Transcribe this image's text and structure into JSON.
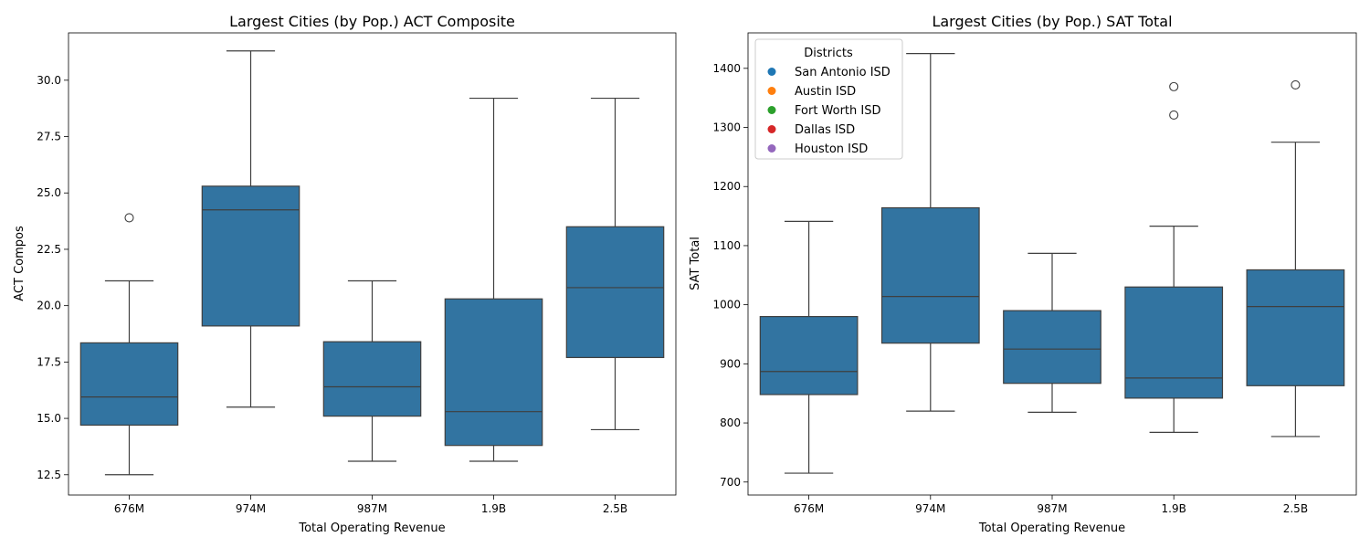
{
  "chart_data": [
    {
      "type": "box",
      "title": "Largest Cities (by Pop.) ACT Composite",
      "xlabel": "Total Operating Revenue",
      "ylabel": "ACT Compos",
      "ylim": [
        11.6,
        32.1
      ],
      "yticks": [
        "12.5",
        "15.0",
        "17.5",
        "20.0",
        "22.5",
        "25.0",
        "27.5",
        "30.0"
      ],
      "categories": [
        "676M",
        "974M",
        "987M",
        "1.9B",
        "2.5B"
      ],
      "box_color": "#3274a1",
      "boxes": [
        {
          "category": "676M",
          "whislo": 12.5,
          "q1": 14.7,
          "med": 15.95,
          "q3": 18.35,
          "whishi": 21.1,
          "fliers": [
            23.9
          ]
        },
        {
          "category": "974M",
          "whislo": 15.5,
          "q1": 19.1,
          "med": 24.25,
          "q3": 25.3,
          "whishi": 31.3,
          "fliers": []
        },
        {
          "category": "987M",
          "whislo": 13.1,
          "q1": 15.1,
          "med": 16.4,
          "q3": 18.4,
          "whishi": 21.1,
          "fliers": []
        },
        {
          "category": "1.9B",
          "whislo": 13.1,
          "q1": 13.8,
          "med": 15.3,
          "q3": 20.3,
          "whishi": 29.2,
          "fliers": []
        },
        {
          "category": "2.5B",
          "whislo": 14.5,
          "q1": 17.7,
          "med": 20.8,
          "q3": 23.5,
          "whishi": 29.2,
          "fliers": []
        }
      ]
    },
    {
      "type": "box",
      "title": "Largest Cities (by Pop.) SAT Total",
      "xlabel": "Total Operating Revenue",
      "ylabel": "SAT Total",
      "ylim": [
        678,
        1460
      ],
      "yticks": [
        "700",
        "800",
        "900",
        "1000",
        "1100",
        "1200",
        "1300",
        "1400"
      ],
      "categories": [
        "676M",
        "974M",
        "987M",
        "1.9B",
        "2.5B"
      ],
      "box_color": "#3274a1",
      "boxes": [
        {
          "category": "676M",
          "whislo": 715,
          "q1": 848,
          "med": 887,
          "q3": 980,
          "whishi": 1141,
          "fliers": []
        },
        {
          "category": "974M",
          "whislo": 820,
          "q1": 935,
          "med": 1014,
          "q3": 1164,
          "whishi": 1425,
          "fliers": []
        },
        {
          "category": "987M",
          "whislo": 818,
          "q1": 867,
          "med": 925,
          "q3": 990,
          "whishi": 1087,
          "fliers": []
        },
        {
          "category": "1.9B",
          "whislo": 784,
          "q1": 842,
          "med": 876,
          "q3": 1030,
          "whishi": 1133,
          "fliers": [
            1321,
            1369
          ]
        },
        {
          "category": "2.5B",
          "whislo": 777,
          "q1": 863,
          "med": 997,
          "q3": 1059,
          "whishi": 1275,
          "fliers": [
            1372
          ]
        }
      ],
      "legend": {
        "title": "Districts",
        "placement": "top-left",
        "entries": [
          {
            "name": "San Antonio ISD",
            "color": "#1f77b4"
          },
          {
            "name": "Austin ISD",
            "color": "#ff7f0e"
          },
          {
            "name": "Fort Worth ISD",
            "color": "#2ca02c"
          },
          {
            "name": "Dallas ISD",
            "color": "#d62728"
          },
          {
            "name": "Houston ISD",
            "color": "#9467bd"
          }
        ]
      }
    }
  ]
}
